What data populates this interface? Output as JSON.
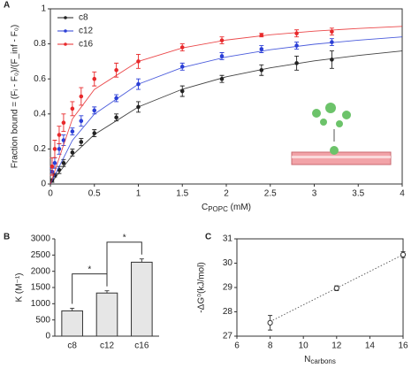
{
  "chart_data": [
    {
      "type": "scatter",
      "panel": "A",
      "ylabel": "Fraction bound = (Fᵢ - F₀)/(F_inf - F₀)",
      "xlabel": {
        "base": "C",
        "sub": "POPC",
        "unit": " (mM)"
      },
      "xlim": [
        0,
        4
      ],
      "xticks": [
        0,
        0.5,
        1,
        1.5,
        2,
        2.5,
        3,
        3.5,
        4
      ],
      "ylim": [
        0,
        1
      ],
      "yticks": [
        0,
        0.2,
        0.4,
        0.6,
        0.8,
        1
      ],
      "frame": "box",
      "legend": "upper left",
      "marker": "filled",
      "x": [
        0.02,
        0.05,
        0.1,
        0.15,
        0.25,
        0.35,
        0.5,
        0.75,
        1,
        1.5,
        1.95,
        2.4,
        2.8,
        3.2
      ],
      "fit_x": [
        0,
        0.25,
        0.5,
        1,
        1.5,
        2,
        2.5,
        3,
        3.5,
        4
      ],
      "series": [
        {
          "name": "c8",
          "color": "#222222",
          "values": [
            0.02,
            0.05,
            0.08,
            0.12,
            0.18,
            0.24,
            0.29,
            0.38,
            0.44,
            0.53,
            0.6,
            0.65,
            0.69,
            0.71
          ],
          "errors": [
            0.01,
            0.01,
            0.02,
            0.02,
            0.02,
            0.02,
            0.02,
            0.02,
            0.03,
            0.03,
            0.02,
            0.03,
            0.04,
            0.05
          ],
          "fit_values": [
            0,
            0.164,
            0.282,
            0.44,
            0.541,
            0.612,
            0.663,
            0.703,
            0.734,
            0.76
          ]
        },
        {
          "name": "c12",
          "color": "#2b3fd6",
          "values": [
            0.07,
            0.12,
            0.2,
            0.25,
            0.3,
            0.36,
            0.42,
            0.49,
            0.57,
            0.67,
            0.73,
            0.77,
            0.79,
            0.81
          ],
          "errors": [
            0.02,
            0.03,
            0.03,
            0.03,
            0.02,
            0.03,
            0.02,
            0.02,
            0.03,
            0.02,
            0.02,
            0.02,
            0.02,
            0.02
          ],
          "fit_values": [
            0,
            0.249,
            0.399,
            0.57,
            0.665,
            0.725,
            0.767,
            0.798,
            0.821,
            0.84
          ]
        },
        {
          "name": "c16",
          "color": "#e8292b",
          "values": [
            0.1,
            0.2,
            0.28,
            0.35,
            0.43,
            0.5,
            0.6,
            0.65,
            0.7,
            0.78,
            0.82,
            0.85,
            0.86,
            0.87
          ],
          "errors": [
            0.05,
            0.05,
            0.05,
            0.05,
            0.04,
            0.05,
            0.04,
            0.04,
            0.04,
            0.02,
            0.02,
            0.01,
            0.02,
            0.02
          ],
          "fit_values": [
            0,
            0.371,
            0.54,
            0.7,
            0.777,
            0.822,
            0.852,
            0.873,
            0.888,
            0.9
          ]
        }
      ]
    },
    {
      "type": "bar",
      "panel": "B",
      "ylabel": "K (M⁻¹)",
      "categories": [
        "c8",
        "c12",
        "c16"
      ],
      "values": [
        780,
        1330,
        2280
      ],
      "errors": [
        80,
        70,
        100
      ],
      "color": "#e6e6e6",
      "ylim": [
        0,
        3000
      ],
      "yticks": [
        0,
        500,
        1000,
        1500,
        2000,
        2500,
        3000
      ],
      "frame": "axes",
      "annotations": [
        {
          "text": "*",
          "pair": [
            0,
            1
          ]
        },
        {
          "text": "*",
          "pair": [
            1,
            2
          ]
        }
      ]
    },
    {
      "type": "scatter",
      "panel": "C",
      "ylabel": "-ΔG⁰(kJ/mol)",
      "xlabel": {
        "base": "N",
        "sub": "carbons"
      },
      "xlim": [
        6,
        16
      ],
      "xticks": [
        6,
        8,
        10,
        12,
        14,
        16
      ],
      "ylim": [
        27,
        31
      ],
      "yticks": [
        27,
        28,
        29,
        30,
        31
      ],
      "frame": "box",
      "marker": "open",
      "x": [
        8,
        12,
        16
      ],
      "fit_x": [
        8,
        16
      ],
      "series": [
        {
          "color": "#333333",
          "line_style": "dotted",
          "values": [
            27.55,
            28.97,
            30.35
          ],
          "errors": [
            0.3,
            0.1,
            0.12
          ],
          "fit_values": [
            27.6,
            30.35
          ]
        }
      ]
    }
  ]
}
